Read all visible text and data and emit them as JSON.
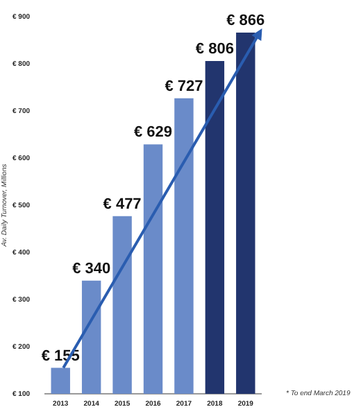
{
  "chart_data": {
    "type": "bar",
    "ylabel": "Av. Daily Turnover, Millions",
    "categories": [
      "2013",
      "2014",
      "2015",
      "2016",
      "2017",
      "2018",
      "2019"
    ],
    "values": [
      155,
      340,
      477,
      629,
      727,
      806,
      866
    ],
    "colors": [
      "#6a8bc9",
      "#6a8bc9",
      "#6a8bc9",
      "#6a8bc9",
      "#6a8bc9",
      "#22356e",
      "#22356e"
    ],
    "value_labels": [
      "€ 155",
      "€ 340",
      "€ 477",
      "€ 629",
      "€ 727",
      "€ 806",
      "€ 866"
    ],
    "ylim": [
      100,
      900
    ],
    "yticks": [
      {
        "value": 100,
        "label": "€ 100"
      },
      {
        "value": 200,
        "label": "€ 200"
      },
      {
        "value": 300,
        "label": "€ 300"
      },
      {
        "value": 400,
        "label": "€ 400"
      },
      {
        "value": 500,
        "label": "€ 500"
      },
      {
        "value": 600,
        "label": "€ 600"
      },
      {
        "value": 700,
        "label": "€ 700"
      },
      {
        "value": 800,
        "label": "€ 800"
      },
      {
        "value": 900,
        "label": "€ 900"
      }
    ],
    "grid": false,
    "legend": false,
    "annotations": [
      "* To end March 2019"
    ]
  }
}
